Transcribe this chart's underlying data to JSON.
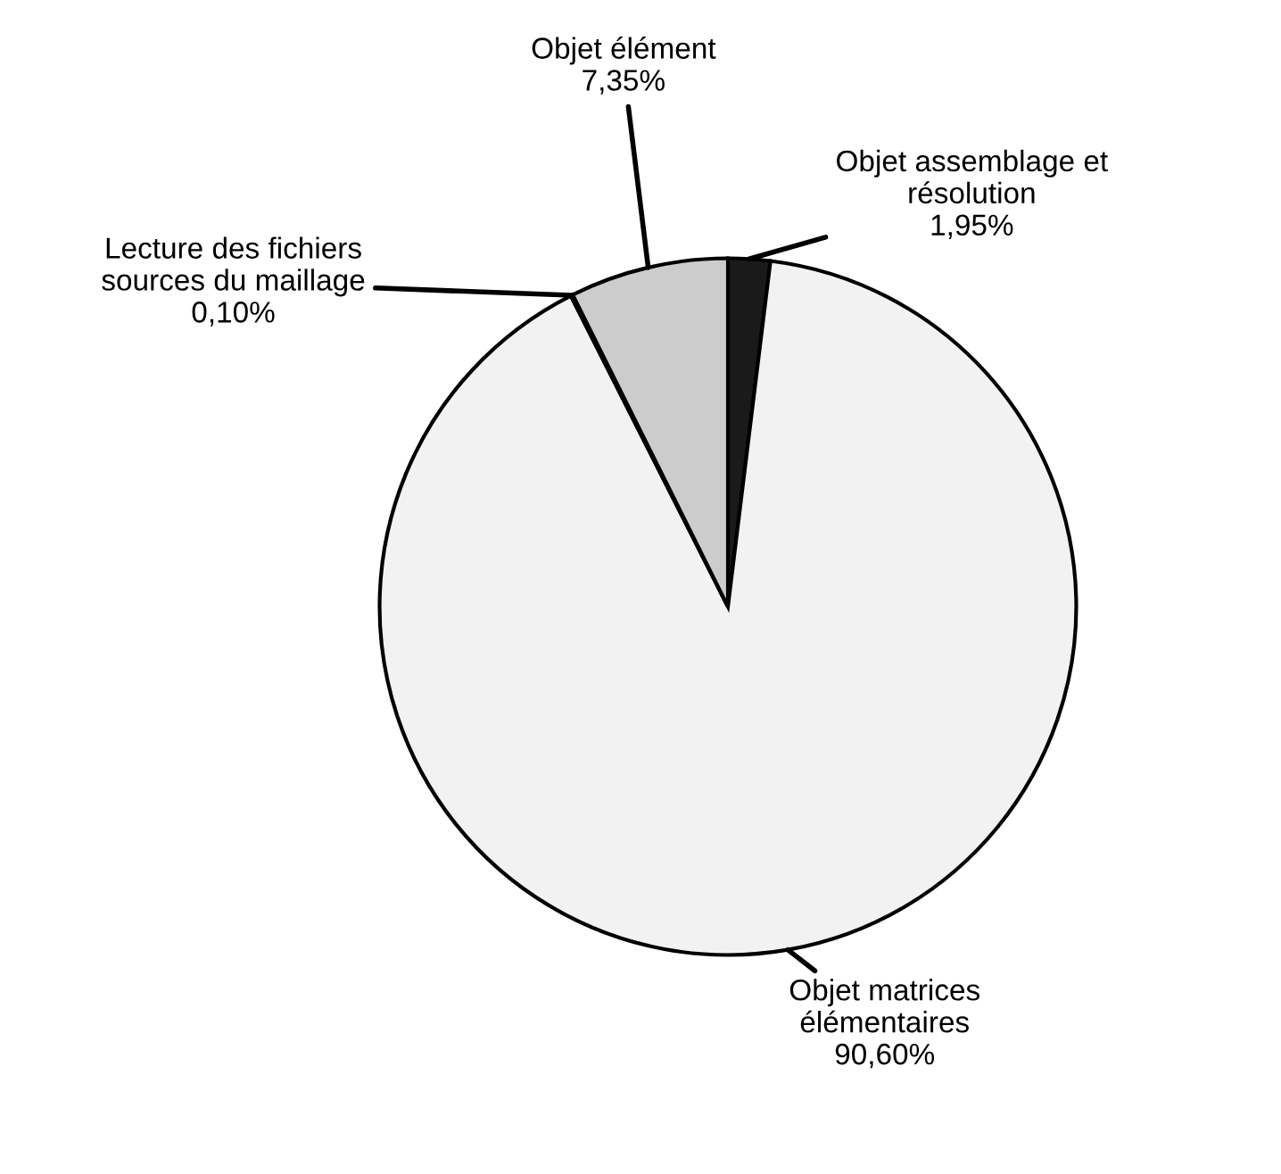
{
  "chart_data": {
    "type": "pie",
    "categories": [
      "Objet assemblage et\nrésolution",
      "Objet matrices\nélémentaires",
      "Lecture des fichiers\nsources du maillage",
      "Objet élément"
    ],
    "values": [
      1.95,
      90.6,
      0.1,
      7.35
    ],
    "value_labels": [
      "1,95%",
      "90,60%",
      "0,10%",
      "7,35%"
    ],
    "colors": [
      "#1a1a1a",
      "#f2f2f2",
      "#ffffff",
      "#cccccc"
    ],
    "legend": false
  }
}
